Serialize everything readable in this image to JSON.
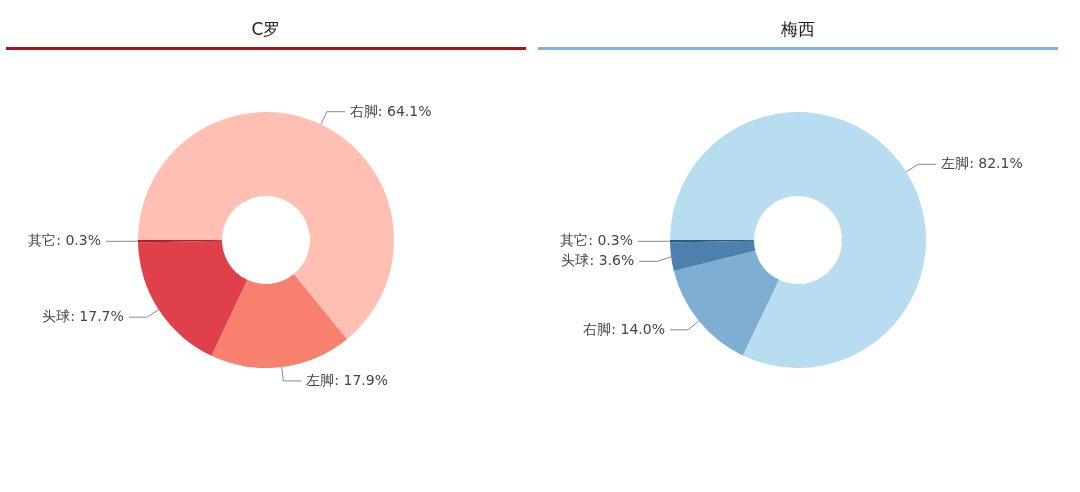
{
  "chart_data": [
    {
      "type": "donut",
      "title": "C罗",
      "categories": [
        "右脚",
        "左脚",
        "头球",
        "其它"
      ],
      "values": [
        64.1,
        17.9,
        17.7,
        0.3
      ],
      "value_labels": [
        "64.1%",
        "17.9%",
        "17.7%",
        "0.3%"
      ],
      "colors": [
        "#ffbfb2",
        "#f7806e",
        "#e0404a",
        "#b51c26"
      ]
    },
    {
      "type": "donut",
      "title": "梅西",
      "categories": [
        "左脚",
        "右脚",
        "头球",
        "其它"
      ],
      "values": [
        82.1,
        14.0,
        3.6,
        0.3
      ],
      "value_labels": [
        "82.1%",
        "14.0%",
        "3.6%",
        "0.3%"
      ],
      "colors": [
        "#b9ddf0",
        "#7eaed3",
        "#4e80ad",
        "#2b5a8a"
      ]
    }
  ]
}
